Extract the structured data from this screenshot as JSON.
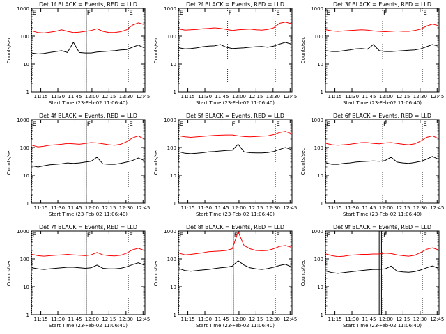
{
  "chart_data": [
    {
      "type": "line",
      "title": "Det 1f BLACK = Events, RED = LLD",
      "xlabel": "Start Time (23-Feb-02 11:06:40)",
      "ylabel": "Counts/sec",
      "x_ticks": [
        "11:15",
        "11:30",
        "11:45",
        "12:00",
        "12:15",
        "12:30",
        "12:45"
      ],
      "x_range": [
        "11:06:40",
        "12:46:40"
      ],
      "y_ticks": [
        "1",
        "10",
        "100",
        "1000"
      ],
      "ylim": [
        1,
        1000
      ],
      "y_scale": "log",
      "markers": [
        {
          "label": "E",
          "time": "11:07"
        },
        {
          "label": "F",
          "time": "11:55"
        },
        {
          "label": "E",
          "time": "12:32"
        }
      ],
      "band": [
        "11:53",
        "11:55"
      ],
      "series": [
        {
          "color": "#ff0000",
          "values": [
            155,
            135,
            130,
            140,
            150,
            170,
            150,
            135,
            140,
            150,
            160,
            185,
            150,
            135,
            135,
            145,
            170,
            250,
            300,
            260
          ]
        },
        {
          "color": "#000000",
          "values": [
            25,
            23,
            24,
            26,
            28,
            30,
            26,
            60,
            26,
            25,
            25,
            27,
            28,
            29,
            30,
            32,
            33,
            40,
            48,
            38
          ]
        }
      ]
    },
    {
      "type": "line",
      "title": "Det 2f BLACK = Events, RED = LLD",
      "xlabel": "Start Time (23-Feb-02 11:06:40)",
      "ylabel": "Counts/sec",
      "x_ticks": [
        "11:15",
        "11:30",
        "11:45",
        "12:00",
        "12:15",
        "12:30",
        "12:45"
      ],
      "x_range": [
        "11:06:40",
        "12:46:40"
      ],
      "y_ticks": [
        "1",
        "10",
        "100",
        "1000"
      ],
      "ylim": [
        1,
        1000
      ],
      "y_scale": "log",
      "markers": [
        {
          "label": "E",
          "time": "11:07"
        },
        {
          "label": "F",
          "time": "11:50"
        },
        {
          "label": "E",
          "time": "12:32"
        }
      ],
      "series": [
        {
          "color": "#ff0000",
          "values": [
            180,
            165,
            170,
            175,
            185,
            190,
            200,
            190,
            175,
            160,
            170,
            175,
            180,
            170,
            165,
            175,
            200,
            290,
            320,
            280
          ]
        },
        {
          "color": "#000000",
          "values": [
            38,
            35,
            36,
            38,
            42,
            44,
            45,
            50,
            40,
            36,
            37,
            38,
            40,
            42,
            43,
            40,
            44,
            52,
            60,
            52
          ]
        }
      ]
    },
    {
      "type": "line",
      "title": "Det 3f BLACK = Events, RED = LLD",
      "xlabel": "Start Time (23-Feb-02 11:06:40)",
      "ylabel": "Counts/sec",
      "x_ticks": [
        "11:15",
        "11:30",
        "11:45",
        "12:00",
        "12:15",
        "12:30",
        "12:45"
      ],
      "x_range": [
        "11:06:40",
        "12:46:40"
      ],
      "y_ticks": [
        "1",
        "10",
        "100",
        "1000"
      ],
      "ylim": [
        1,
        1000
      ],
      "y_scale": "log",
      "markers": [
        {
          "label": "E",
          "time": "11:07"
        },
        {
          "label": "F",
          "time": "11:57"
        },
        {
          "label": "E",
          "time": "12:32"
        }
      ],
      "series": [
        {
          "color": "#ff0000",
          "values": [
            170,
            155,
            150,
            155,
            160,
            165,
            170,
            165,
            155,
            150,
            145,
            150,
            155,
            150,
            150,
            160,
            180,
            230,
            270,
            240
          ]
        },
        {
          "color": "#000000",
          "values": [
            30,
            28,
            28,
            30,
            32,
            35,
            36,
            34,
            50,
            30,
            28,
            28,
            29,
            30,
            31,
            32,
            35,
            42,
            50,
            44
          ]
        }
      ]
    },
    {
      "type": "line",
      "title": "Det 4f BLACK = Events, RED = LLD",
      "xlabel": "Start Time (23-Feb-02 11:06:40)",
      "ylabel": "Counts/sec",
      "x_ticks": [
        "11:15",
        "11:30",
        "11:45",
        "12:00",
        "12:15",
        "12:30",
        "12:45"
      ],
      "x_range": [
        "11:06:40",
        "12:46:40"
      ],
      "y_ticks": [
        "1",
        "10",
        "100",
        "1000"
      ],
      "ylim": [
        1,
        1000
      ],
      "y_scale": "log",
      "markers": [
        {
          "label": "E",
          "time": "11:07"
        },
        {
          "label": "F",
          "time": "11:55"
        },
        {
          "label": "E",
          "time": "12:32"
        }
      ],
      "band": [
        "11:53",
        "11:55"
      ],
      "series": [
        {
          "color": "#ff0000",
          "values": [
            120,
            105,
            110,
            120,
            125,
            130,
            140,
            135,
            130,
            140,
            150,
            145,
            135,
            125,
            120,
            130,
            160,
            220,
            260,
            200
          ]
        },
        {
          "color": "#000000",
          "values": [
            22,
            20,
            22,
            24,
            25,
            26,
            28,
            27,
            28,
            30,
            32,
            45,
            26,
            25,
            25,
            27,
            30,
            34,
            42,
            34
          ]
        }
      ]
    },
    {
      "type": "line",
      "title": "Det 5f BLACK = Events, RED = LLD",
      "xlabel": "Start Time (23-Feb-02 11:06:40)",
      "ylabel": "Counts/sec",
      "x_ticks": [
        "11:15",
        "11:30",
        "11:45",
        "12:00",
        "12:15",
        "12:30",
        "12:45"
      ],
      "x_range": [
        "11:06:40",
        "12:46:40"
      ],
      "y_ticks": [
        "1",
        "10",
        "100",
        "1000"
      ],
      "ylim": [
        1,
        1000
      ],
      "y_scale": "log",
      "markers": [
        {
          "label": "E",
          "time": "11:07"
        },
        {
          "label": "F",
          "time": "11:53"
        },
        {
          "label": "E",
          "time": "12:32"
        }
      ],
      "series": [
        {
          "color": "#ff0000",
          "values": [
            260,
            240,
            230,
            240,
            250,
            260,
            270,
            275,
            280,
            280,
            260,
            245,
            240,
            245,
            255,
            260,
            290,
            350,
            380,
            320
          ]
        },
        {
          "color": "#000000",
          "values": [
            70,
            62,
            60,
            62,
            65,
            70,
            72,
            75,
            78,
            80,
            130,
            70,
            65,
            64,
            64,
            66,
            72,
            85,
            100,
            85
          ]
        }
      ]
    },
    {
      "type": "line",
      "title": "Det 6f BLACK = Events, RED = LLD",
      "xlabel": "Start Time (23-Feb-02 11:06:40)",
      "ylabel": "Counts/sec",
      "x_ticks": [
        "11:15",
        "11:30",
        "11:45",
        "12:00",
        "12:15",
        "12:30",
        "12:45"
      ],
      "x_range": [
        "11:06:40",
        "12:46:40"
      ],
      "y_ticks": [
        "1",
        "10",
        "100",
        "1000"
      ],
      "ylim": [
        1,
        1000
      ],
      "y_scale": "log",
      "markers": [
        {
          "label": "E",
          "time": "11:07"
        },
        {
          "label": "F",
          "time": "11:57"
        },
        {
          "label": "E",
          "time": "12:32"
        }
      ],
      "series": [
        {
          "color": "#ff0000",
          "values": [
            140,
            125,
            120,
            125,
            130,
            140,
            150,
            150,
            140,
            135,
            145,
            150,
            140,
            130,
            125,
            135,
            170,
            230,
            260,
            210
          ]
        },
        {
          "color": "#000000",
          "values": [
            28,
            25,
            25,
            27,
            28,
            30,
            31,
            32,
            33,
            32,
            34,
            45,
            30,
            28,
            27,
            29,
            32,
            38,
            48,
            38
          ]
        }
      ]
    },
    {
      "type": "line",
      "title": "Det 7f BLACK = Events, RED = LLD",
      "xlabel": "Start Time (23-Feb-02 11:06:40)",
      "ylabel": "Counts/sec",
      "x_ticks": [
        "11:15",
        "11:30",
        "11:45",
        "12:00",
        "12:15",
        "12:30",
        "12:45"
      ],
      "x_range": [
        "11:06:40",
        "12:46:40"
      ],
      "y_ticks": [
        "1",
        "10",
        "100",
        "1000"
      ],
      "ylim": [
        1,
        1000
      ],
      "y_scale": "log",
      "markers": [
        {
          "label": "E",
          "time": "11:07"
        },
        {
          "label": "F",
          "time": "11:55"
        },
        {
          "label": "E",
          "time": "12:32"
        }
      ],
      "band": [
        "11:53",
        "11:55"
      ],
      "series": [
        {
          "color": "#ff0000",
          "values": [
            145,
            130,
            125,
            130,
            135,
            140,
            145,
            140,
            135,
            130,
            140,
            170,
            140,
            130,
            128,
            135,
            160,
            210,
            240,
            200
          ]
        },
        {
          "color": "#000000",
          "values": [
            48,
            44,
            42,
            44,
            46,
            48,
            50,
            50,
            48,
            46,
            48,
            60,
            46,
            44,
            44,
            46,
            52,
            62,
            72,
            60
          ]
        }
      ]
    },
    {
      "type": "line",
      "title": "Det 8f BLACK = Events, RED = LLD",
      "xlabel": "Start Time (23-Feb-02 11:06:40)",
      "ylabel": "Counts/sec",
      "x_ticks": [
        "11:15",
        "11:30",
        "11:45",
        "12:00",
        "12:15",
        "12:30",
        "12:45"
      ],
      "x_range": [
        "11:06:40",
        "12:46:40"
      ],
      "y_ticks": [
        "1",
        "10",
        "100",
        "1000"
      ],
      "ylim": [
        1,
        1000
      ],
      "y_scale": "log",
      "markers": [
        {
          "label": "E",
          "time": "11:07"
        },
        {
          "label": "F",
          "time": "11:55"
        },
        {
          "label": "E",
          "time": "12:32"
        }
      ],
      "band": [
        "11:53",
        "11:55"
      ],
      "series": [
        {
          "color": "#ff0000",
          "values": [
            160,
            140,
            145,
            155,
            165,
            180,
            185,
            190,
            200,
            230,
            1000,
            300,
            230,
            200,
            195,
            200,
            230,
            280,
            300,
            260
          ]
        },
        {
          "color": "#000000",
          "values": [
            45,
            38,
            36,
            38,
            40,
            42,
            45,
            48,
            50,
            55,
            85,
            60,
            48,
            44,
            42,
            45,
            50,
            58,
            64,
            52
          ]
        }
      ]
    },
    {
      "type": "line",
      "title": "Det 9f BLACK = Events, RED = LLD",
      "xlabel": "Start Time (23-Feb-02 11:06:40)",
      "ylabel": "Counts/sec",
      "x_ticks": [
        "11:15",
        "11:30",
        "11:45",
        "12:00",
        "12:15",
        "12:30",
        "12:45"
      ],
      "x_range": [
        "11:06:40",
        "12:46:40"
      ],
      "y_ticks": [
        "1",
        "10",
        "100",
        "1000"
      ],
      "ylim": [
        1,
        1000
      ],
      "y_scale": "log",
      "markers": [
        {
          "label": "E",
          "time": "11:07"
        },
        {
          "label": "F",
          "time": "11:57"
        },
        {
          "label": "E",
          "time": "12:32"
        }
      ],
      "band": [
        "11:54",
        "11:56"
      ],
      "series": [
        {
          "color": "#ff0000",
          "values": [
            150,
            130,
            120,
            125,
            135,
            140,
            145,
            145,
            150,
            150,
            160,
            155,
            140,
            130,
            125,
            135,
            170,
            220,
            250,
            210
          ]
        },
        {
          "color": "#000000",
          "values": [
            36,
            32,
            30,
            32,
            34,
            36,
            38,
            40,
            42,
            42,
            44,
            55,
            36,
            34,
            33,
            35,
            40,
            48,
            56,
            46
          ]
        }
      ]
    }
  ]
}
